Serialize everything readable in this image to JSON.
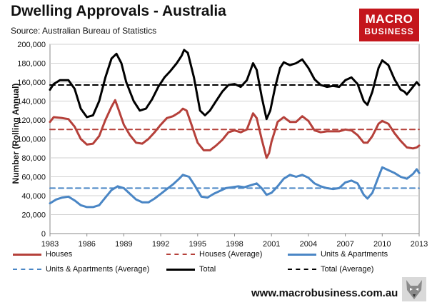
{
  "header": {
    "title": "Dwelling Approvals - Australia",
    "subtitle": "Source: Australian Bureau of Statistics"
  },
  "logo": {
    "line1": "MACRO",
    "line2": "BUSINESS"
  },
  "footer": {
    "url": "www.macrobusiness.com.au"
  },
  "colors": {
    "houses": "#b5403a",
    "units": "#4a86c5",
    "total": "#000000"
  },
  "chart_data": {
    "type": "line",
    "title": "Dwelling Approvals - Australia",
    "xlabel": "",
    "ylabel": "Number (Rolling Annual)",
    "xlim": [
      1983,
      2013
    ],
    "ylim": [
      0,
      200000
    ],
    "xticks": [
      1983,
      1986,
      1989,
      1992,
      1995,
      1998,
      2001,
      2004,
      2007,
      2010,
      2013
    ],
    "yticks": [
      0,
      20000,
      40000,
      60000,
      80000,
      100000,
      120000,
      140000,
      160000,
      180000,
      200000
    ],
    "ytick_labels": [
      "0",
      "20,000",
      "40,000",
      "60,000",
      "80,000",
      "100,000",
      "120,000",
      "140,000",
      "160,000",
      "180,000",
      "200,000"
    ],
    "grid": true,
    "legend_position": "bottom",
    "series": [
      {
        "name": "Houses",
        "style": "solid",
        "color": "#b5403a",
        "points": [
          [
            1983.0,
            118000
          ],
          [
            1983.3,
            123000
          ],
          [
            1984.0,
            122000
          ],
          [
            1984.5,
            121000
          ],
          [
            1985.0,
            113000
          ],
          [
            1985.5,
            100000
          ],
          [
            1986.0,
            94000
          ],
          [
            1986.5,
            95000
          ],
          [
            1987.0,
            103000
          ],
          [
            1987.5,
            120000
          ],
          [
            1988.0,
            134000
          ],
          [
            1988.3,
            141000
          ],
          [
            1988.6,
            130000
          ],
          [
            1989.0,
            115000
          ],
          [
            1989.5,
            104000
          ],
          [
            1990.0,
            96000
          ],
          [
            1990.5,
            95000
          ],
          [
            1991.0,
            100000
          ],
          [
            1991.5,
            107000
          ],
          [
            1992.0,
            115000
          ],
          [
            1992.5,
            122000
          ],
          [
            1993.0,
            124000
          ],
          [
            1993.5,
            128000
          ],
          [
            1993.8,
            132000
          ],
          [
            1994.1,
            130000
          ],
          [
            1994.5,
            115000
          ],
          [
            1995.0,
            96000
          ],
          [
            1995.5,
            88000
          ],
          [
            1996.0,
            88000
          ],
          [
            1996.5,
            93000
          ],
          [
            1997.0,
            99000
          ],
          [
            1997.5,
            107000
          ],
          [
            1998.0,
            109000
          ],
          [
            1998.5,
            107000
          ],
          [
            1999.0,
            110000
          ],
          [
            1999.5,
            127000
          ],
          [
            1999.8,
            122000
          ],
          [
            2000.2,
            100000
          ],
          [
            2000.6,
            80000
          ],
          [
            2000.8,
            85000
          ],
          [
            2001.0,
            97000
          ],
          [
            2001.5,
            118000
          ],
          [
            2002.0,
            123000
          ],
          [
            2002.5,
            118000
          ],
          [
            2003.0,
            118000
          ],
          [
            2003.5,
            124000
          ],
          [
            2004.0,
            119000
          ],
          [
            2004.5,
            109000
          ],
          [
            2005.0,
            107000
          ],
          [
            2005.5,
            108000
          ],
          [
            2006.0,
            108000
          ],
          [
            2006.5,
            108000
          ],
          [
            2007.0,
            110000
          ],
          [
            2007.5,
            109000
          ],
          [
            2008.0,
            104000
          ],
          [
            2008.5,
            96000
          ],
          [
            2008.8,
            96000
          ],
          [
            2009.2,
            103000
          ],
          [
            2009.7,
            116000
          ],
          [
            2010.0,
            119000
          ],
          [
            2010.5,
            116000
          ],
          [
            2011.0,
            106000
          ],
          [
            2011.5,
            98000
          ],
          [
            2012.0,
            91000
          ],
          [
            2012.5,
            90000
          ],
          [
            2012.8,
            91000
          ],
          [
            2013.0,
            93000
          ]
        ]
      },
      {
        "name": "Houses (Average)",
        "style": "dashed",
        "color": "#b5403a",
        "points": [
          [
            1983.0,
            110000
          ],
          [
            2013.0,
            110000
          ]
        ]
      },
      {
        "name": "Units & Apartments",
        "style": "solid",
        "color": "#4a86c5",
        "points": [
          [
            1983.0,
            32000
          ],
          [
            1983.5,
            36000
          ],
          [
            1984.0,
            38000
          ],
          [
            1984.5,
            39000
          ],
          [
            1985.0,
            35000
          ],
          [
            1985.5,
            30000
          ],
          [
            1986.0,
            28000
          ],
          [
            1986.5,
            28000
          ],
          [
            1987.0,
            30000
          ],
          [
            1987.5,
            38000
          ],
          [
            1988.0,
            46000
          ],
          [
            1988.5,
            50000
          ],
          [
            1989.0,
            48000
          ],
          [
            1989.5,
            42000
          ],
          [
            1990.0,
            36000
          ],
          [
            1990.5,
            33000
          ],
          [
            1991.0,
            33000
          ],
          [
            1991.5,
            37000
          ],
          [
            1992.0,
            42000
          ],
          [
            1992.5,
            47000
          ],
          [
            1993.0,
            52000
          ],
          [
            1993.5,
            58000
          ],
          [
            1993.8,
            62000
          ],
          [
            1994.3,
            60000
          ],
          [
            1994.8,
            50000
          ],
          [
            1995.3,
            39000
          ],
          [
            1995.8,
            38000
          ],
          [
            1996.3,
            42000
          ],
          [
            1996.8,
            45000
          ],
          [
            1997.3,
            48000
          ],
          [
            1997.8,
            49000
          ],
          [
            1998.3,
            50000
          ],
          [
            1998.8,
            49000
          ],
          [
            1999.3,
            51000
          ],
          [
            1999.8,
            53000
          ],
          [
            2000.2,
            48000
          ],
          [
            2000.6,
            41000
          ],
          [
            2001.0,
            43000
          ],
          [
            2001.5,
            50000
          ],
          [
            2002.0,
            58000
          ],
          [
            2002.5,
            62000
          ],
          [
            2003.0,
            60000
          ],
          [
            2003.5,
            62000
          ],
          [
            2004.0,
            59000
          ],
          [
            2004.5,
            53000
          ],
          [
            2005.0,
            50000
          ],
          [
            2005.5,
            48000
          ],
          [
            2006.0,
            47000
          ],
          [
            2006.5,
            48000
          ],
          [
            2007.0,
            54000
          ],
          [
            2007.5,
            56000
          ],
          [
            2008.0,
            53000
          ],
          [
            2008.5,
            41000
          ],
          [
            2008.8,
            37000
          ],
          [
            2009.2,
            43000
          ],
          [
            2009.7,
            60000
          ],
          [
            2010.0,
            70000
          ],
          [
            2010.5,
            67000
          ],
          [
            2011.0,
            64000
          ],
          [
            2011.5,
            60000
          ],
          [
            2012.0,
            58000
          ],
          [
            2012.5,
            63000
          ],
          [
            2012.8,
            68000
          ],
          [
            2013.0,
            64000
          ]
        ]
      },
      {
        "name": "Units & Apartments (Average)",
        "style": "dashed",
        "color": "#4a86c5",
        "points": [
          [
            1983.0,
            48000
          ],
          [
            2013.0,
            48000
          ]
        ]
      },
      {
        "name": "Total",
        "style": "solid",
        "color": "#000000",
        "points": [
          [
            1983.0,
            152000
          ],
          [
            1983.3,
            158000
          ],
          [
            1983.8,
            162000
          ],
          [
            1984.5,
            162000
          ],
          [
            1985.0,
            153000
          ],
          [
            1985.5,
            132000
          ],
          [
            1986.0,
            123000
          ],
          [
            1986.5,
            125000
          ],
          [
            1987.0,
            140000
          ],
          [
            1987.5,
            165000
          ],
          [
            1988.0,
            185000
          ],
          [
            1988.4,
            190000
          ],
          [
            1988.8,
            180000
          ],
          [
            1989.2,
            160000
          ],
          [
            1989.8,
            140000
          ],
          [
            1990.3,
            130000
          ],
          [
            1990.8,
            132000
          ],
          [
            1991.3,
            142000
          ],
          [
            1991.8,
            155000
          ],
          [
            1992.3,
            165000
          ],
          [
            1992.8,
            172000
          ],
          [
            1993.3,
            180000
          ],
          [
            1993.7,
            188000
          ],
          [
            1993.9,
            194000
          ],
          [
            1994.2,
            191000
          ],
          [
            1994.7,
            165000
          ],
          [
            1995.2,
            130000
          ],
          [
            1995.6,
            125000
          ],
          [
            1996.0,
            130000
          ],
          [
            1996.5,
            140000
          ],
          [
            1997.0,
            150000
          ],
          [
            1997.5,
            157000
          ],
          [
            1998.0,
            158000
          ],
          [
            1998.5,
            155000
          ],
          [
            1999.0,
            162000
          ],
          [
            1999.5,
            180000
          ],
          [
            1999.8,
            173000
          ],
          [
            2000.2,
            145000
          ],
          [
            2000.6,
            121000
          ],
          [
            2000.9,
            130000
          ],
          [
            2001.3,
            155000
          ],
          [
            2001.7,
            175000
          ],
          [
            2002.0,
            181000
          ],
          [
            2002.5,
            178000
          ],
          [
            2003.0,
            180000
          ],
          [
            2003.5,
            184000
          ],
          [
            2004.0,
            175000
          ],
          [
            2004.5,
            163000
          ],
          [
            2005.0,
            157000
          ],
          [
            2005.5,
            155000
          ],
          [
            2006.0,
            156000
          ],
          [
            2006.5,
            155000
          ],
          [
            2007.0,
            162000
          ],
          [
            2007.5,
            165000
          ],
          [
            2008.0,
            158000
          ],
          [
            2008.5,
            140000
          ],
          [
            2008.8,
            136000
          ],
          [
            2009.2,
            150000
          ],
          [
            2009.7,
            175000
          ],
          [
            2010.0,
            183000
          ],
          [
            2010.5,
            178000
          ],
          [
            2011.0,
            163000
          ],
          [
            2011.5,
            152000
          ],
          [
            2011.8,
            150000
          ],
          [
            2012.0,
            147000
          ],
          [
            2012.5,
            155000
          ],
          [
            2012.8,
            160000
          ],
          [
            2013.0,
            157000
          ]
        ]
      },
      {
        "name": "Total (Average)",
        "style": "dashed",
        "color": "#000000",
        "points": [
          [
            1983.0,
            157000
          ],
          [
            2013.0,
            157000
          ]
        ]
      }
    ]
  }
}
